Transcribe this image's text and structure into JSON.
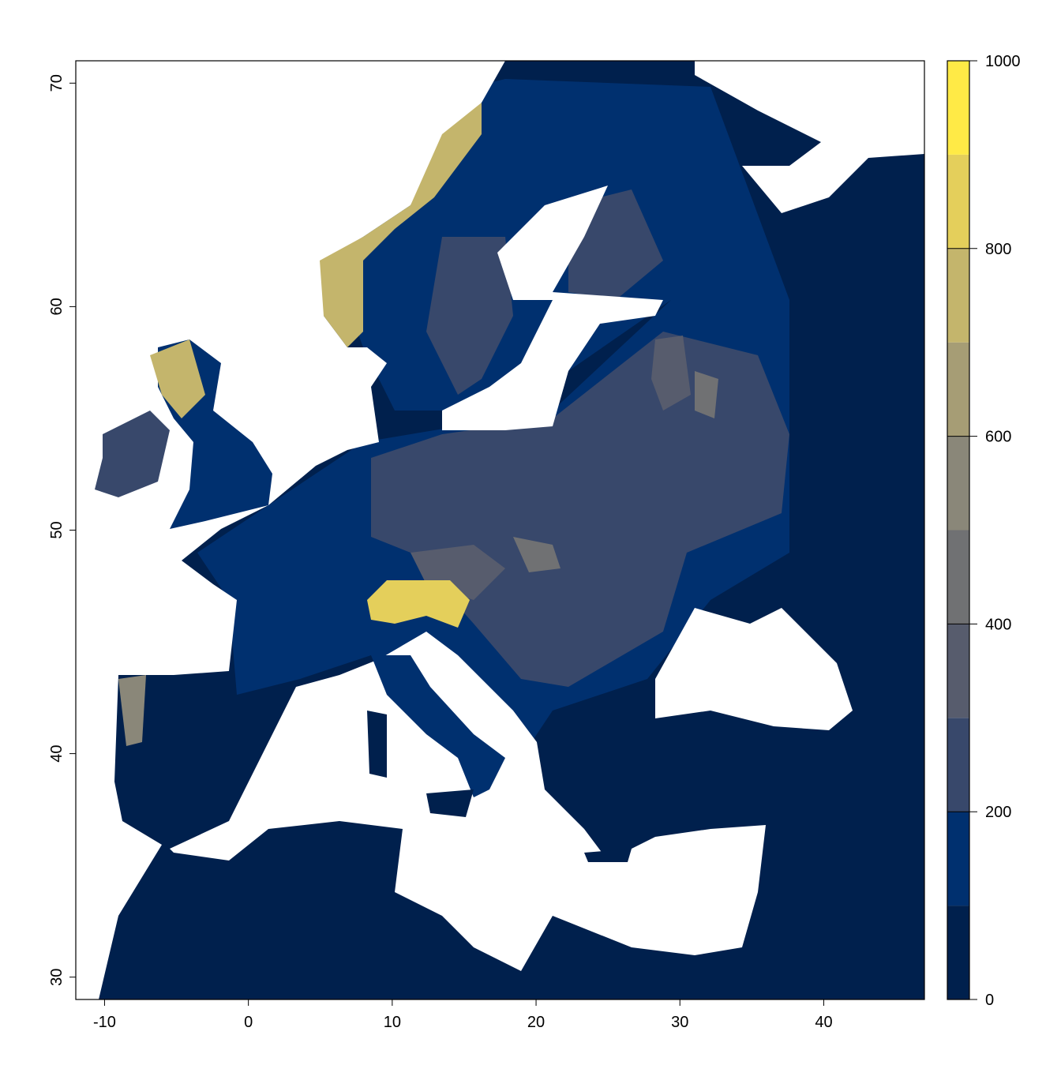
{
  "chart_data": {
    "type": "heatmap",
    "title": "",
    "xlabel": "",
    "ylabel": "",
    "xlim": [
      -12,
      47
    ],
    "ylim": [
      29,
      71
    ],
    "x_ticks": [
      -10,
      0,
      10,
      20,
      30,
      40
    ],
    "y_ticks": [
      30,
      40,
      50,
      60,
      70
    ],
    "legend": {
      "placement": "right",
      "range": [
        0,
        1000
      ],
      "ticks": [
        0,
        200,
        400,
        600,
        800,
        1000
      ],
      "breaks": [
        0,
        100,
        200,
        300,
        400,
        500,
        600,
        700,
        800,
        900,
        1000
      ],
      "colors": [
        "#00204D",
        "#00306F",
        "#38486B",
        "#575C6D",
        "#707173",
        "#8A8779",
        "#A69D75",
        "#C4B56C",
        "#E4CF5B",
        "#FFEA46"
      ]
    },
    "sea_color": "#FFFFFF",
    "grid": false
  }
}
